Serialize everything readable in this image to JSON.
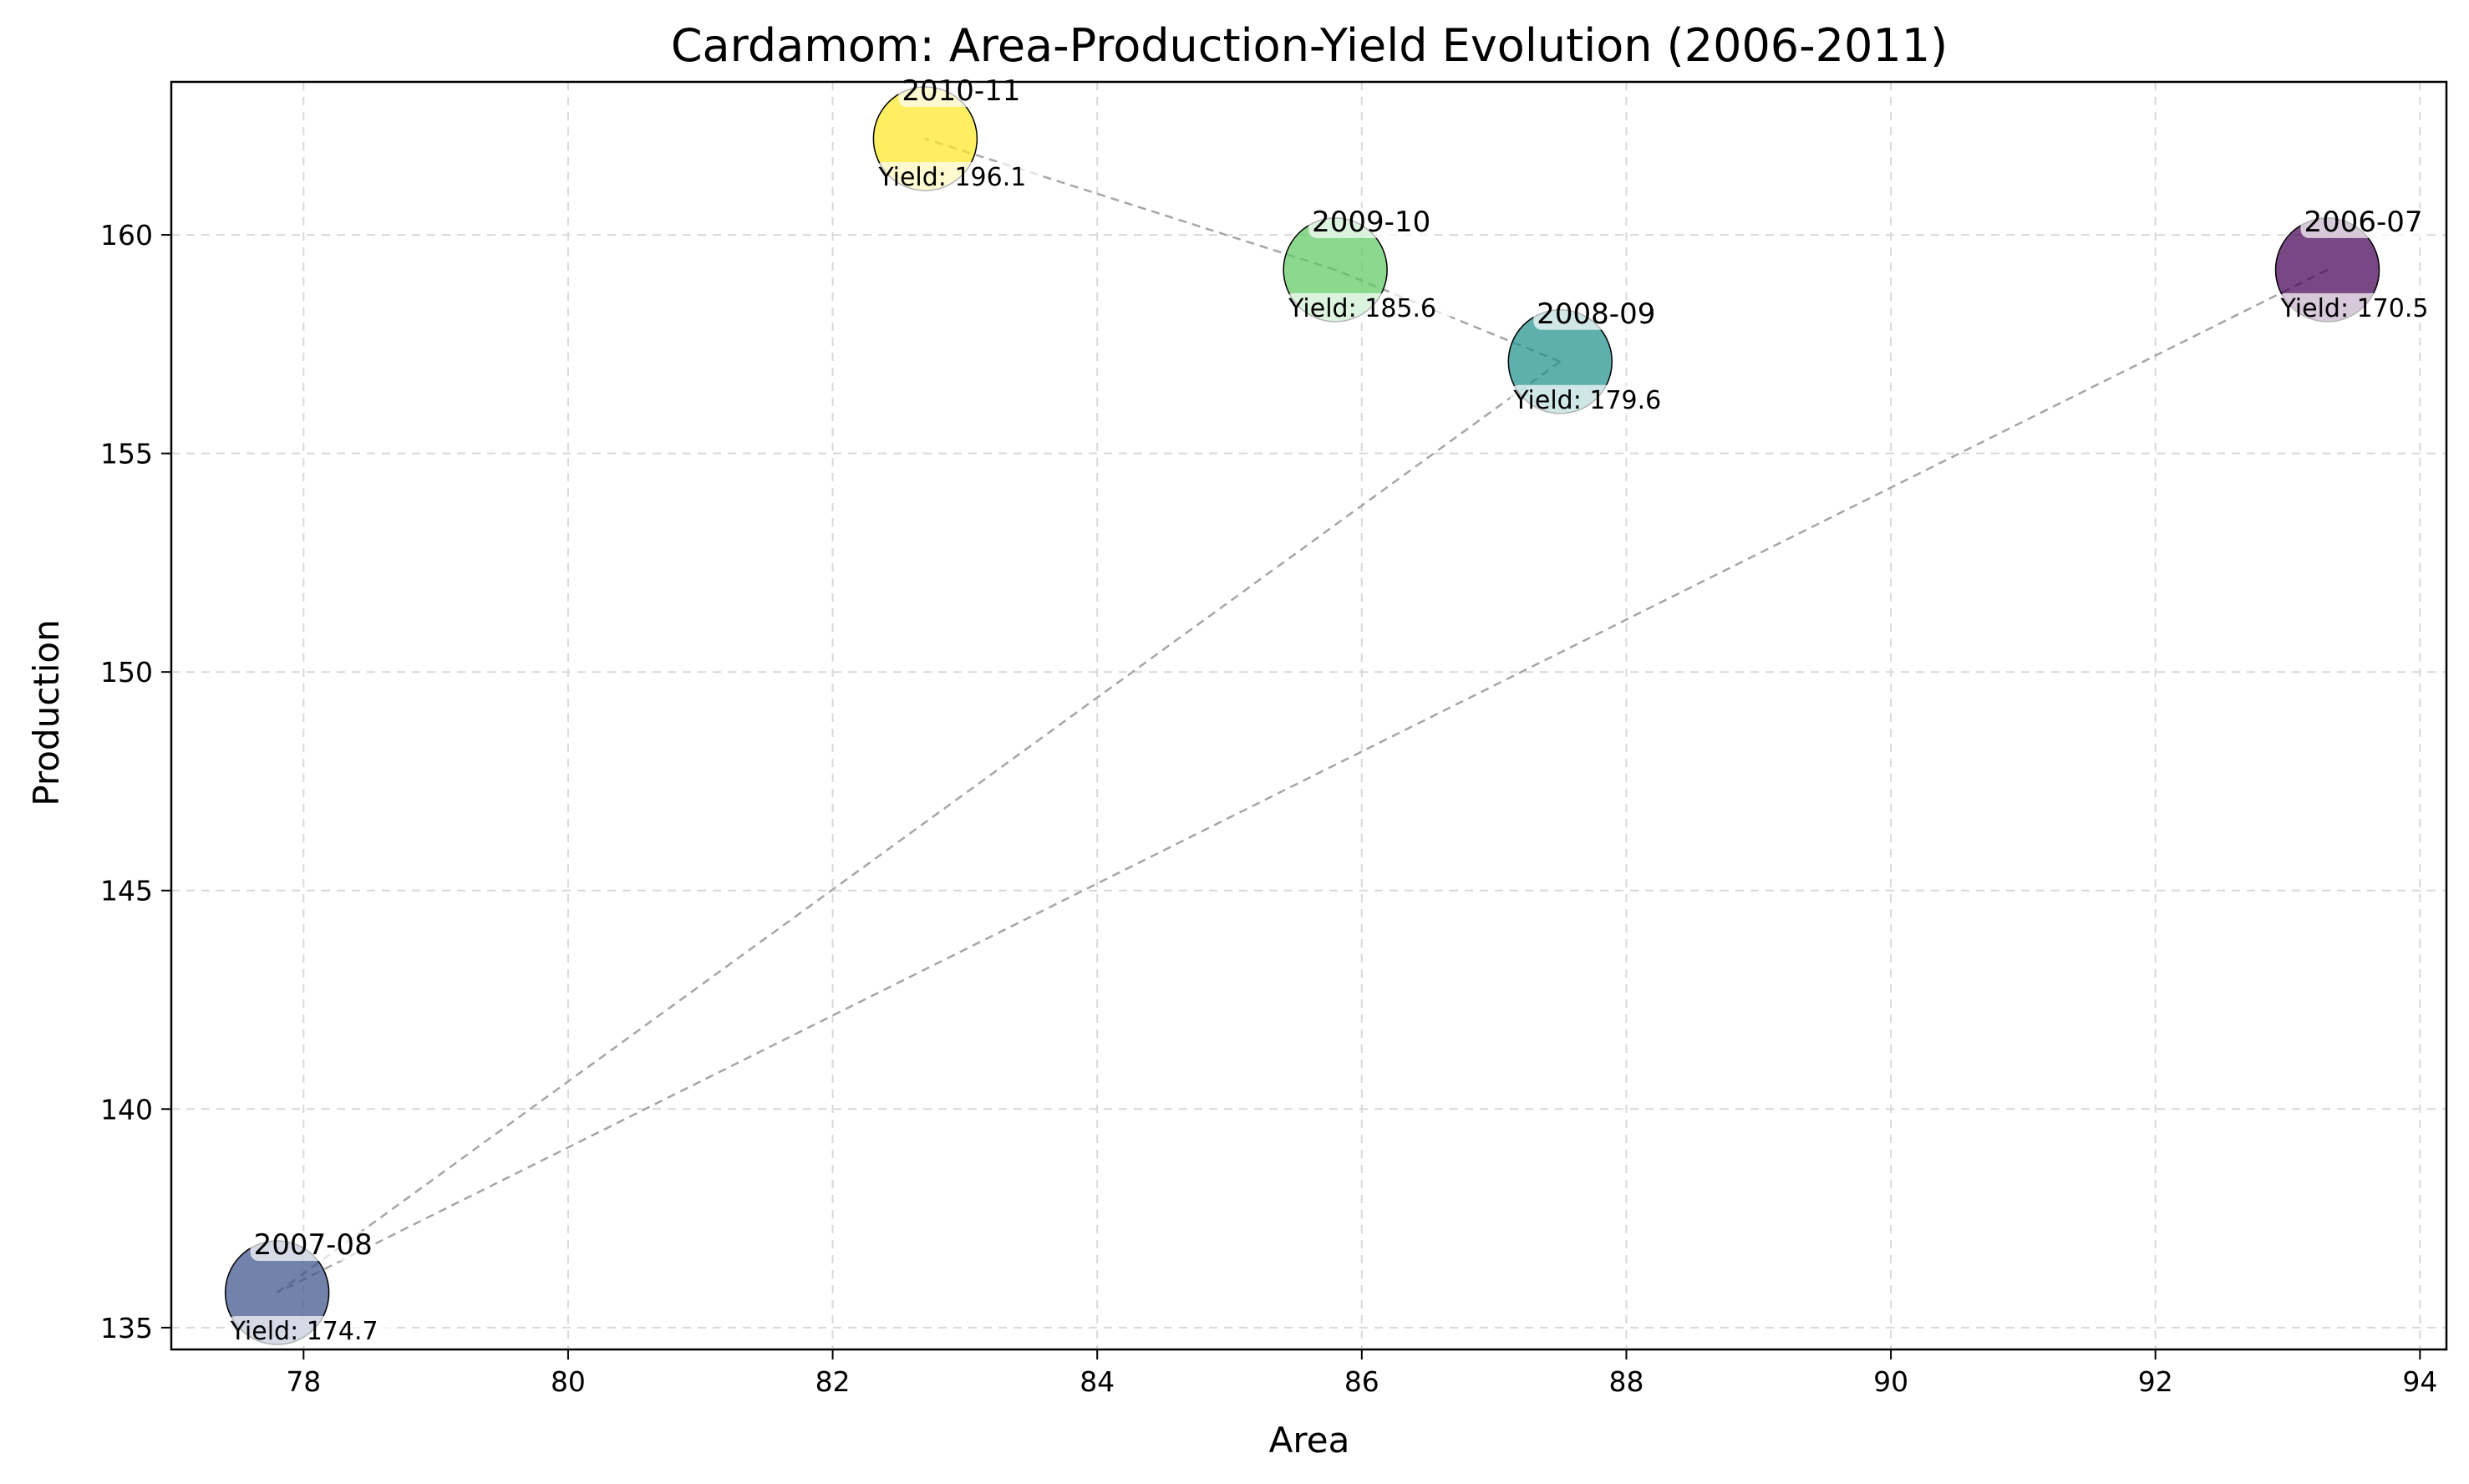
{
  "chart_data": {
    "type": "scatter",
    "title": "Cardamom: Area-Production-Yield Evolution (2006-2011)",
    "xlabel": "Area",
    "ylabel": "Production",
    "xlim": [
      77.0,
      94.2
    ],
    "ylim": [
      134.5,
      163.5
    ],
    "xticks": [
      78,
      80,
      82,
      84,
      86,
      88,
      90,
      92,
      94
    ],
    "yticks": [
      135,
      140,
      145,
      150,
      155,
      160
    ],
    "grid": true,
    "connect_order": "chronological",
    "points": [
      {
        "label": "2006-07",
        "x": 93.3,
        "y": 159.2,
        "yield": 170.5,
        "yield_text": "Yield: 170.5",
        "color": "#440154"
      },
      {
        "label": "2007-08",
        "x": 77.8,
        "y": 135.8,
        "yield": 174.7,
        "yield_text": "Yield: 174.7",
        "color": "#3b528b"
      },
      {
        "label": "2008-09",
        "x": 87.5,
        "y": 157.1,
        "yield": 179.6,
        "yield_text": "Yield: 179.6",
        "color": "#21918c"
      },
      {
        "label": "2009-10",
        "x": 85.8,
        "y": 159.2,
        "yield": 185.6,
        "yield_text": "Yield: 185.6",
        "color": "#5ec962"
      },
      {
        "label": "2010-11",
        "x": 82.7,
        "y": 162.2,
        "yield": 196.1,
        "yield_text": "Yield: 196.1",
        "color": "#fde725"
      }
    ]
  }
}
